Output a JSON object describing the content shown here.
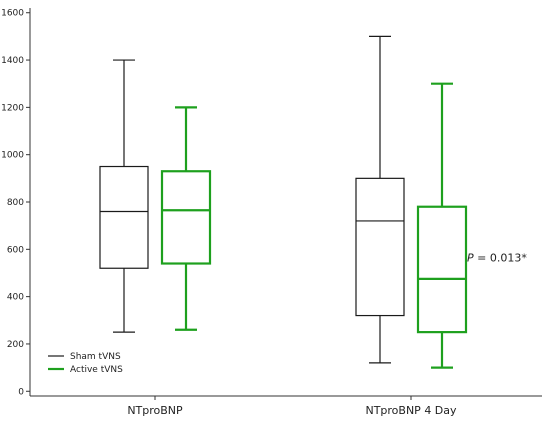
{
  "chart_data": {
    "type": "box",
    "categories": [
      "NTproBNP",
      "NTproBNP 4 Day"
    ],
    "yticks": [
      0,
      200,
      400,
      600,
      800,
      1000,
      1200,
      1400,
      1600
    ],
    "ylim": [
      -20,
      1620
    ],
    "grid": false,
    "legend_position": "bottom-left",
    "series": [
      {
        "name": "Sham tVNS",
        "color": "#1a1a1a",
        "boxes": [
          {
            "min": 250,
            "q1": 520,
            "median": 760,
            "q3": 950,
            "max": 1400
          },
          {
            "min": 120,
            "q1": 320,
            "median": 720,
            "q3": 900,
            "max": 1500
          }
        ]
      },
      {
        "name": "Active tVNS",
        "color": "#1ea01e",
        "boxes": [
          {
            "min": 260,
            "q1": 540,
            "median": 765,
            "q3": 930,
            "max": 1200
          },
          {
            "min": 100,
            "q1": 250,
            "median": 475,
            "q3": 780,
            "max": 1300
          }
        ]
      }
    ],
    "annotation": {
      "p_letter": "P",
      "text": " = 0.013*",
      "category_index": 1,
      "y": 490
    }
  }
}
